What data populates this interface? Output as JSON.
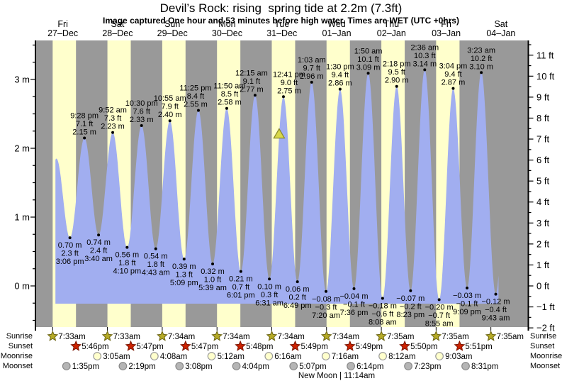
{
  "chart_data": {
    "type": "area",
    "title": "Devil’s Rock: rising  spring tide at 2.2m (7.3ft)",
    "subtitle": "Image captured One hour and 53 minutes before high water. Times are WET (UTC +0hrs)",
    "day_label_color": "#cc2626",
    "days": [
      {
        "name": "Fri",
        "date": "27–Dec"
      },
      {
        "name": "Sat",
        "date": "28–Dec"
      },
      {
        "name": "Sun",
        "date": "29–Dec"
      },
      {
        "name": "Mon",
        "date": "30–Dec"
      },
      {
        "name": "Tue",
        "date": "31–Dec"
      },
      {
        "name": "Wed",
        "date": "01–Jan"
      },
      {
        "name": "Thu",
        "date": "02–Jan"
      },
      {
        "name": "Fri",
        "date": "03–Jan"
      },
      {
        "name": "Sat",
        "date": "04–Jan"
      }
    ],
    "y_axis_left": {
      "unit": "m",
      "major_ticks": [
        {
          "m": 0,
          "label": "0 m"
        },
        {
          "m": 1,
          "label": "1 m"
        },
        {
          "m": 2,
          "label": "2 m"
        },
        {
          "m": 3,
          "label": "3 m"
        }
      ]
    },
    "y_axis_right": {
      "unit": "ft",
      "major_ticks": [
        {
          "ft": -2,
          "label": "−2 ft"
        },
        {
          "ft": -1,
          "label": "−1 ft"
        },
        {
          "ft": 0,
          "label": "0 ft"
        },
        {
          "ft": 1,
          "label": "1 ft"
        },
        {
          "ft": 2,
          "label": "2 ft"
        },
        {
          "ft": 3,
          "label": "3 ft"
        },
        {
          "ft": 4,
          "label": "4 ft"
        },
        {
          "ft": 5,
          "label": "5 ft"
        },
        {
          "ft": 6,
          "label": "6 ft"
        },
        {
          "ft": 7,
          "label": "7 ft"
        },
        {
          "ft": 8,
          "label": "8 ft"
        },
        {
          "ft": 9,
          "label": "9 ft"
        },
        {
          "ft": 10,
          "label": "10 ft"
        },
        {
          "ft": 11,
          "label": "11 ft"
        }
      ]
    },
    "tide_extremes": [
      {
        "day": 0,
        "time": "3:06 pm",
        "type": "low",
        "height_m": 0.7,
        "height_ft": 2.3,
        "label_lines": [
          "0.70 m",
          "2.3 ft",
          "3:06 pm"
        ]
      },
      {
        "day": 0,
        "time": "9:28 pm",
        "type": "high",
        "height_m": 2.15,
        "height_ft": 7.1,
        "label_lines": [
          "9:28 pm",
          "7.1 ft",
          "2.15 m"
        ]
      },
      {
        "day": 1,
        "time": "3:40 am",
        "type": "low",
        "height_m": 0.74,
        "height_ft": 2.4,
        "label_lines": [
          "0.74 m",
          "2.4 ft",
          "3:40 am"
        ]
      },
      {
        "day": 1,
        "time": "9:52 am",
        "type": "high",
        "height_m": 2.23,
        "height_ft": 7.3,
        "label_lines": [
          "9:52 am",
          "7.3 ft",
          "2.23 m"
        ]
      },
      {
        "day": 1,
        "time": "4:10 pm",
        "type": "low",
        "height_m": 0.56,
        "height_ft": 1.8,
        "label_lines": [
          "0.56 m",
          "1.8 ft",
          "4:10 pm"
        ]
      },
      {
        "day": 1,
        "time": "10:30 pm",
        "type": "high",
        "height_m": 2.33,
        "height_ft": 7.6,
        "label_lines": [
          "10:30 pm",
          "7.6 ft",
          "2.33 m"
        ]
      },
      {
        "day": 2,
        "time": "4:43 am",
        "type": "low",
        "height_m": 0.54,
        "height_ft": 1.8,
        "label_lines": [
          "0.54 m",
          "1.8 ft",
          "4:43 am"
        ]
      },
      {
        "day": 2,
        "time": "10:55 am",
        "type": "high",
        "height_m": 2.4,
        "height_ft": 7.9,
        "label_lines": [
          "10:55 am",
          "7.9 ft",
          "2.40 m"
        ]
      },
      {
        "day": 2,
        "time": "5:09 pm",
        "type": "low",
        "height_m": 0.39,
        "height_ft": 1.3,
        "label_lines": [
          "0.39 m",
          "1.3 ft",
          "5:09 pm"
        ]
      },
      {
        "day": 2,
        "time": "11:25 pm",
        "type": "high",
        "height_m": 2.55,
        "height_ft": 8.4,
        "label_dx": -4,
        "label_lines": [
          "11:25 pm",
          "8.4 ft",
          "2.55 m"
        ]
      },
      {
        "day": 3,
        "time": "5:39 am",
        "type": "low",
        "height_m": 0.32,
        "height_ft": 1.0,
        "label_lines": [
          "0.32 m",
          "1.0 ft",
          "5:39 am"
        ]
      },
      {
        "day": 3,
        "time": "11:50 am",
        "type": "high",
        "height_m": 2.58,
        "height_ft": 8.5,
        "label_dx": 4,
        "label_lines": [
          "11:50 am",
          "8.5 ft",
          "2.58 m"
        ]
      },
      {
        "day": 3,
        "time": "6:01 pm",
        "type": "low",
        "height_m": 0.21,
        "height_ft": 0.7,
        "label_lines": [
          "0.21 m",
          "0.7 ft",
          "6:01 pm"
        ]
      },
      {
        "day": 4,
        "time": "12:15 am",
        "type": "high",
        "height_m": 2.77,
        "height_ft": 9.1,
        "label_dx": -5,
        "label_lines": [
          "12:15 am",
          "9.1 ft",
          "2.77 m"
        ]
      },
      {
        "day": 4,
        "time": "6:31 am",
        "type": "low",
        "height_m": 0.1,
        "height_ft": 0.3,
        "label_lines": [
          "0.10 m",
          "0.3 ft",
          "6:31 am"
        ]
      },
      {
        "day": 4,
        "time": "12:41 pm",
        "type": "high",
        "height_m": 2.75,
        "height_ft": 9.0,
        "label_dx": 8,
        "label_lines": [
          "12:41 pm",
          "9.0 ft",
          "2.75 m"
        ]
      },
      {
        "day": 4,
        "time": "6:49 pm",
        "type": "low",
        "height_m": 0.06,
        "height_ft": 0.2,
        "label_lines": [
          "0.06 m",
          "0.2 ft",
          "6:49 pm"
        ]
      },
      {
        "day": 5,
        "time": "1:03 am",
        "type": "high",
        "height_m": 2.96,
        "height_ft": 9.7,
        "label_lines": [
          "1:03 am",
          "9.7 ft",
          "2.96 m"
        ]
      },
      {
        "day": 5,
        "time": "7:20 am",
        "type": "low",
        "height_m": -0.08,
        "height_ft": -0.3,
        "label_lines": [
          "−0.08 m",
          "−0.3 ft",
          "7:20 am"
        ]
      },
      {
        "day": 5,
        "time": "1:30 pm",
        "type": "high",
        "height_m": 2.86,
        "height_ft": 9.4,
        "label_lines": [
          "1:30 pm",
          "9.4 ft",
          "2.86 m"
        ]
      },
      {
        "day": 5,
        "time": "7:36 pm",
        "type": "low",
        "height_m": -0.04,
        "height_ft": -0.1,
        "label_lines": [
          "−0.04 m",
          "−0.1 ft",
          "7:36 pm"
        ]
      },
      {
        "day": 6,
        "time": "1:50 am",
        "type": "high",
        "height_m": 3.09,
        "height_ft": 10.1,
        "label_lines": [
          "1:50 am",
          "10.1 ft",
          "3.09 m"
        ]
      },
      {
        "day": 6,
        "time": "8:08 am",
        "type": "low",
        "height_m": -0.18,
        "height_ft": -0.6,
        "label_lines": [
          "−0.18 m",
          "−0.6 ft",
          "8:08 am"
        ]
      },
      {
        "day": 6,
        "time": "2:18 pm",
        "type": "high",
        "height_m": 2.9,
        "height_ft": 9.5,
        "label_lines": [
          "2:18 pm",
          "9.5 ft",
          "2.90 m"
        ]
      },
      {
        "day": 6,
        "time": "8:23 pm",
        "type": "low",
        "height_m": -0.07,
        "height_ft": -0.2,
        "label_lines": [
          "−0.07 m",
          "−0.2 ft",
          "8:23 pm"
        ]
      },
      {
        "day": 7,
        "time": "2:36 am",
        "type": "high",
        "height_m": 3.14,
        "height_ft": 10.3,
        "label_lines": [
          "2:36 am",
          "10.3 ft",
          "3.14 m"
        ]
      },
      {
        "day": 7,
        "time": "8:55 am",
        "type": "low",
        "height_m": -0.2,
        "height_ft": -0.7,
        "label_lines": [
          "−0.20 m",
          "−0.7 ft",
          "8:55 am"
        ]
      },
      {
        "day": 7,
        "time": "3:04 pm",
        "type": "high",
        "height_m": 2.87,
        "height_ft": 9.4,
        "label_lines": [
          "3:04 pm",
          "9.4 ft",
          "2.87 m"
        ]
      },
      {
        "day": 7,
        "time": "9:09 pm",
        "type": "low",
        "height_m": -0.03,
        "height_ft": -0.1,
        "label_lines": [
          "−0.03 m",
          "−0.1 ft",
          "9:09 pm"
        ]
      },
      {
        "day": 8,
        "time": "3:23 am",
        "type": "high",
        "height_m": 3.1,
        "height_ft": 10.2,
        "label_lines": [
          "3:23 am",
          "10.2 ft",
          "3.10 m"
        ]
      },
      {
        "day": 8,
        "time": "9:43 am",
        "type": "low",
        "height_m": -0.12,
        "height_ft": -0.4,
        "label_lines": [
          "−0.12 m",
          "−0.4 ft",
          "9:43 am"
        ]
      }
    ],
    "curve_shape_points": [
      {
        "day": 0,
        "time": "3:20 am",
        "height_m": 0.55
      },
      {
        "day": 0,
        "time": "9:12 am",
        "height_m": 1.85
      },
      {
        "day": 8,
        "time": "4:00 pm",
        "height_m": 3.0
      }
    ],
    "data_window": {
      "start": {
        "day": 0,
        "time": "8:46 am"
      },
      "end": {
        "day": 8,
        "time": "10:55 am"
      }
    },
    "current_time_marker": {
      "day": 4,
      "time": "10:48 am",
      "height_m": 2.2
    },
    "sun_moon": {
      "rows": [
        {
          "id": "sunrise",
          "label": "Sunrise",
          "icon": "sunrise-star-icon",
          "events": [
            {
              "day": 0,
              "time": "7:33am"
            },
            {
              "day": 1,
              "time": "7:33am"
            },
            {
              "day": 2,
              "time": "7:34am"
            },
            {
              "day": 3,
              "time": "7:34am"
            },
            {
              "day": 4,
              "time": "7:34am"
            },
            {
              "day": 5,
              "time": "7:34am"
            },
            {
              "day": 6,
              "time": "7:35am"
            },
            {
              "day": 7,
              "time": "7:35am"
            },
            {
              "day": 8,
              "time": "7:35am"
            }
          ]
        },
        {
          "id": "sunset",
          "label": "Sunset",
          "icon": "sunset-star-icon",
          "events": [
            {
              "day": 0,
              "time": "5:46pm"
            },
            {
              "day": 1,
              "time": "5:47pm"
            },
            {
              "day": 2,
              "time": "5:47pm"
            },
            {
              "day": 3,
              "time": "5:48pm"
            },
            {
              "day": 4,
              "time": "5:49pm"
            },
            {
              "day": 5,
              "time": "5:49pm"
            },
            {
              "day": 6,
              "time": "5:50pm"
            },
            {
              "day": 7,
              "time": "5:51pm"
            }
          ]
        },
        {
          "id": "moonrise",
          "label": "Moonrise",
          "icon": "moonrise-circle-icon",
          "events": [
            {
              "day": 1,
              "time": "3:05am"
            },
            {
              "day": 2,
              "time": "4:08am"
            },
            {
              "day": 3,
              "time": "5:12am"
            },
            {
              "day": 4,
              "time": "6:16am"
            },
            {
              "day": 5,
              "time": "7:16am"
            },
            {
              "day": 6,
              "time": "8:12am"
            },
            {
              "day": 7,
              "time": "9:03am"
            }
          ]
        },
        {
          "id": "moonset",
          "label": "Moonset",
          "icon": "moonset-circle-icon",
          "events": [
            {
              "day": 0,
              "time": "1:35pm"
            },
            {
              "day": 1,
              "time": "2:19pm"
            },
            {
              "day": 2,
              "time": "3:08pm"
            },
            {
              "day": 3,
              "time": "4:04pm"
            },
            {
              "day": 4,
              "time": "5:07pm"
            },
            {
              "day": 5,
              "time": "6:14pm"
            },
            {
              "day": 6,
              "time": "7:23pm"
            },
            {
              "day": 7,
              "time": "8:31pm"
            }
          ]
        }
      ],
      "note": "New Moon | 11:14am",
      "note_day": 5
    },
    "colors": {
      "night_band": "#999999",
      "daylight_band": "#ffffcc",
      "tide_fill": "#a1aef0",
      "day_text": "#cc2626",
      "sunrise_star": "#b5aa26",
      "sunrise_star_border": "#6b6414",
      "sunset_star": "#cc2200",
      "sunset_star_border": "#7a1500",
      "moonrise_circle": "#ffffcc",
      "moonrise_circle_border": "#999999",
      "moonset_circle": "#b5b5b5",
      "moonset_circle_border": "#878787",
      "marker_fill": "#d8d84a",
      "marker_border": "#8a8a2a"
    },
    "layout_hints": {
      "legend": "none",
      "grid": "off",
      "x_range_days": 9,
      "y_range_m": [
        -0.6,
        3.57
      ]
    }
  }
}
